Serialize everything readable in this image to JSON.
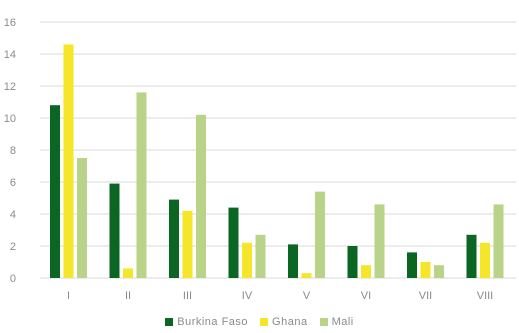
{
  "chart_data": {
    "type": "bar",
    "categories": [
      "I",
      "II",
      "III",
      "IV",
      "V",
      "VI",
      "VII",
      "VIII"
    ],
    "series": [
      {
        "name": "Burkina Faso",
        "color": "#0b6623",
        "values": [
          10.8,
          5.9,
          4.9,
          4.4,
          2.1,
          2.0,
          1.6,
          2.7
        ]
      },
      {
        "name": "Ghana",
        "color": "#f5e62a",
        "values": [
          14.6,
          0.6,
          4.2,
          2.2,
          0.3,
          0.8,
          1.0,
          2.2
        ]
      },
      {
        "name": "Mali",
        "color": "#b9d489",
        "values": [
          7.5,
          11.6,
          10.2,
          2.7,
          5.4,
          4.6,
          0.8,
          4.6
        ]
      }
    ],
    "ylim": [
      0,
      16
    ],
    "yticks": [
      0,
      2,
      4,
      6,
      8,
      10,
      12,
      14,
      16
    ],
    "grid": true,
    "legend_position": "bottom"
  }
}
